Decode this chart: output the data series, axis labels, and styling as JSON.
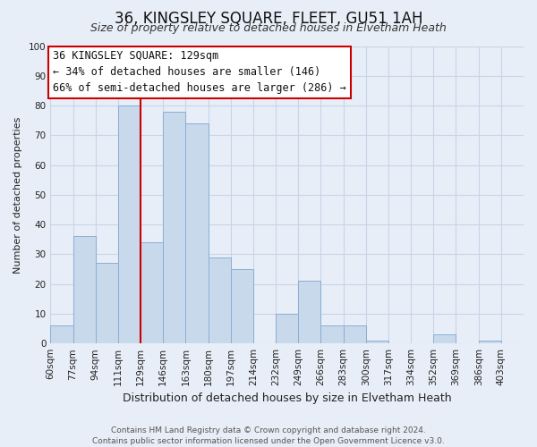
{
  "title": "36, KINGSLEY SQUARE, FLEET, GU51 1AH",
  "subtitle": "Size of property relative to detached houses in Elvetham Heath",
  "xlabel": "Distribution of detached houses by size in Elvetham Heath",
  "ylabel": "Number of detached properties",
  "footer_line1": "Contains HM Land Registry data © Crown copyright and database right 2024.",
  "footer_line2": "Contains public sector information licensed under the Open Government Licence v3.0.",
  "bin_labels": [
    "60sqm",
    "77sqm",
    "94sqm",
    "111sqm",
    "129sqm",
    "146sqm",
    "163sqm",
    "180sqm",
    "197sqm",
    "214sqm",
    "232sqm",
    "249sqm",
    "266sqm",
    "283sqm",
    "300sqm",
    "317sqm",
    "334sqm",
    "352sqm",
    "369sqm",
    "386sqm",
    "403sqm"
  ],
  "bar_heights": [
    6,
    36,
    27,
    80,
    34,
    78,
    74,
    29,
    25,
    0,
    10,
    21,
    6,
    6,
    1,
    0,
    0,
    3,
    0,
    1,
    0
  ],
  "bar_color": "#c9d9ec",
  "bar_edge_color": "#8aaed4",
  "vline_x_index": 4,
  "vline_color": "#cc0000",
  "annotation_title": "36 KINGSLEY SQUARE: 129sqm",
  "annotation_line1": "← 34% of detached houses are smaller (146)",
  "annotation_line2": "66% of semi-detached houses are larger (286) →",
  "ylim": [
    0,
    100
  ],
  "yticks": [
    0,
    10,
    20,
    30,
    40,
    50,
    60,
    70,
    80,
    90,
    100
  ],
  "box_color": "#cc0000",
  "background_color": "#e8eef7",
  "plot_bg_color": "#e8eef7",
  "grid_color": "#c8d4e8",
  "title_fontsize": 12,
  "subtitle_fontsize": 9,
  "xlabel_fontsize": 9,
  "ylabel_fontsize": 8,
  "tick_fontsize": 7.5,
  "annotation_fontsize": 8.5,
  "footer_fontsize": 6.5
}
